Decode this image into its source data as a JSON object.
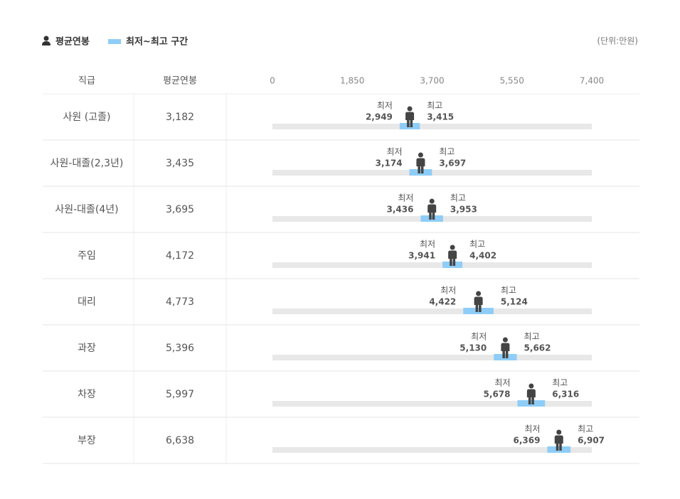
{
  "chart_data": {
    "type": "range",
    "unit": "(단위:만원)",
    "column_headers": [
      "직급",
      "평균연봉"
    ],
    "categories": [
      "사원 (고졸)",
      "사원-대졸(2,3년)",
      "사원-대졸(4년)",
      "주임",
      "대리",
      "과장",
      "차장",
      "부장"
    ],
    "series": [
      {
        "name": "평균연봉",
        "color": "#444444",
        "values": [
          3182,
          3435,
          3695,
          4172,
          4773,
          5396,
          5997,
          6638
        ],
        "value_labels": [
          "3,182",
          "3,435",
          "3,695",
          "4,172",
          "4,773",
          "5,396",
          "5,997",
          "6,638"
        ]
      }
    ],
    "range": {
      "name": "최저~최고 구간",
      "color": "#8ecdf7",
      "low_name": "최저",
      "high_name": "최고",
      "low": [
        2949,
        3174,
        3436,
        3941,
        4422,
        5130,
        5678,
        6369
      ],
      "low_labels": [
        "2,949",
        "3,174",
        "3,436",
        "3,941",
        "4,422",
        "5,130",
        "5,678",
        "6,369"
      ],
      "high": [
        3415,
        3697,
        3953,
        4402,
        5124,
        5662,
        6316,
        6907
      ],
      "high_labels": [
        "3,415",
        "3,697",
        "3,953",
        "4,402",
        "5,124",
        "5,662",
        "6,316",
        "6,907"
      ]
    },
    "xlim": [
      0,
      7400
    ],
    "xticks": [
      0,
      {
        "value": 1850,
        "label": "1,850"
      },
      {
        "value": 3700,
        "label": "3,700"
      },
      {
        "value": 5550,
        "label": "5,550"
      },
      {
        "value": 7400,
        "label": "7,400"
      }
    ]
  }
}
